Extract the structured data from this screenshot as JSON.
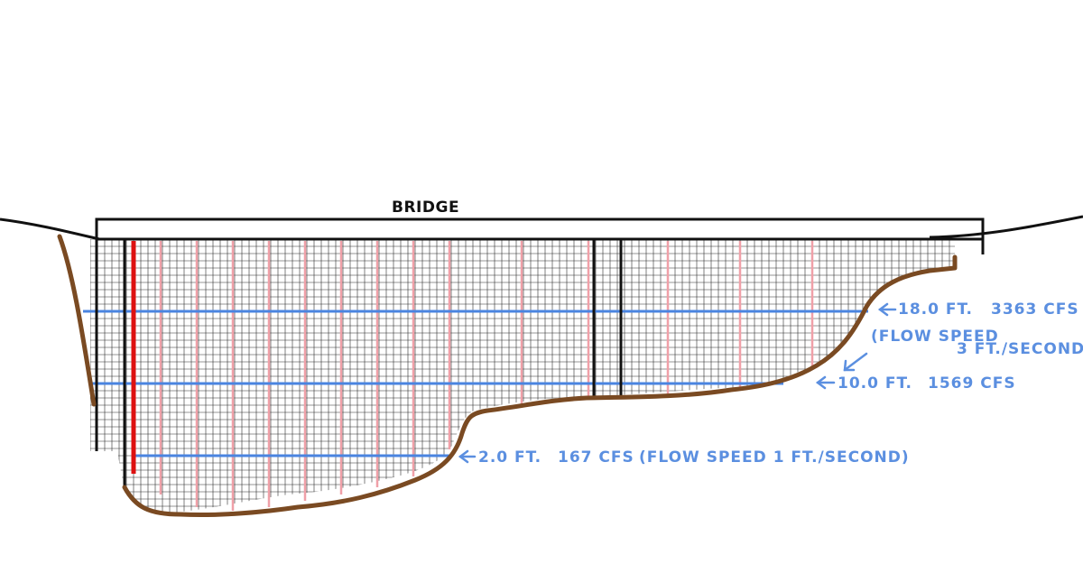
{
  "title": "BRIDGE",
  "colors": {
    "grid": "#222222",
    "bank": "#7a4a22",
    "water_level": "#4a84e0",
    "annotation": "#5b8fe0",
    "pier": "#111111",
    "gauge_red": "#dd1111",
    "pink_line": "#f0a0a8"
  },
  "water_levels": [
    {
      "depth_label": "18.0 FT.",
      "discharge_label": "3363 CFS",
      "flow_note_line1": "(FLOW SPEED",
      "flow_note_line2": "3 FT./SECOND)"
    },
    {
      "depth_label": "10.0 FT.",
      "discharge_label": "1569 CFS"
    },
    {
      "depth_label": "2.0 FT.",
      "discharge_label": "167 CFS",
      "flow_note": "(FLOW SPEED 1 FT./SECOND)"
    }
  ]
}
